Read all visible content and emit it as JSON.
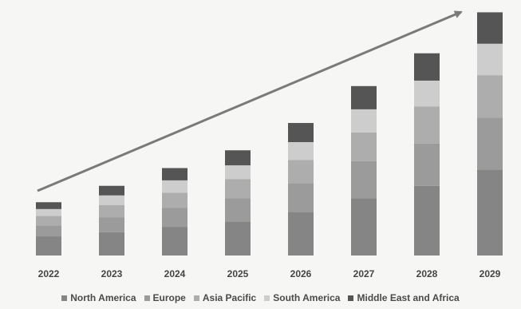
{
  "chart_data": {
    "type": "bar",
    "stacked": true,
    "title": "",
    "xlabel": "",
    "ylabel": "",
    "categories": [
      "2022",
      "2023",
      "2024",
      "2025",
      "2026",
      "2027",
      "2028",
      "2029"
    ],
    "series": [
      {
        "name": "North America",
        "color": "#858585",
        "values": [
          14,
          17,
          21,
          25,
          32,
          42,
          51,
          63
        ]
      },
      {
        "name": "Europe",
        "color": "#9b9b9b",
        "values": [
          8,
          11,
          14,
          17,
          21,
          27,
          31,
          38
        ]
      },
      {
        "name": "Asia Pacific",
        "color": "#adadad",
        "values": [
          7,
          9,
          11,
          14,
          17,
          21,
          27,
          31
        ]
      },
      {
        "name": "South America",
        "color": "#cdcdcd",
        "values": [
          5,
          7,
          9,
          10,
          13,
          17,
          19,
          23
        ]
      },
      {
        "name": "Middle East and Africa",
        "color": "#555555",
        "values": [
          5,
          7,
          9,
          11,
          14,
          17,
          20,
          23
        ]
      }
    ],
    "ylim": [
      0,
      180
    ],
    "grid": false,
    "legend": "bottom",
    "trend_arrow": true
  }
}
